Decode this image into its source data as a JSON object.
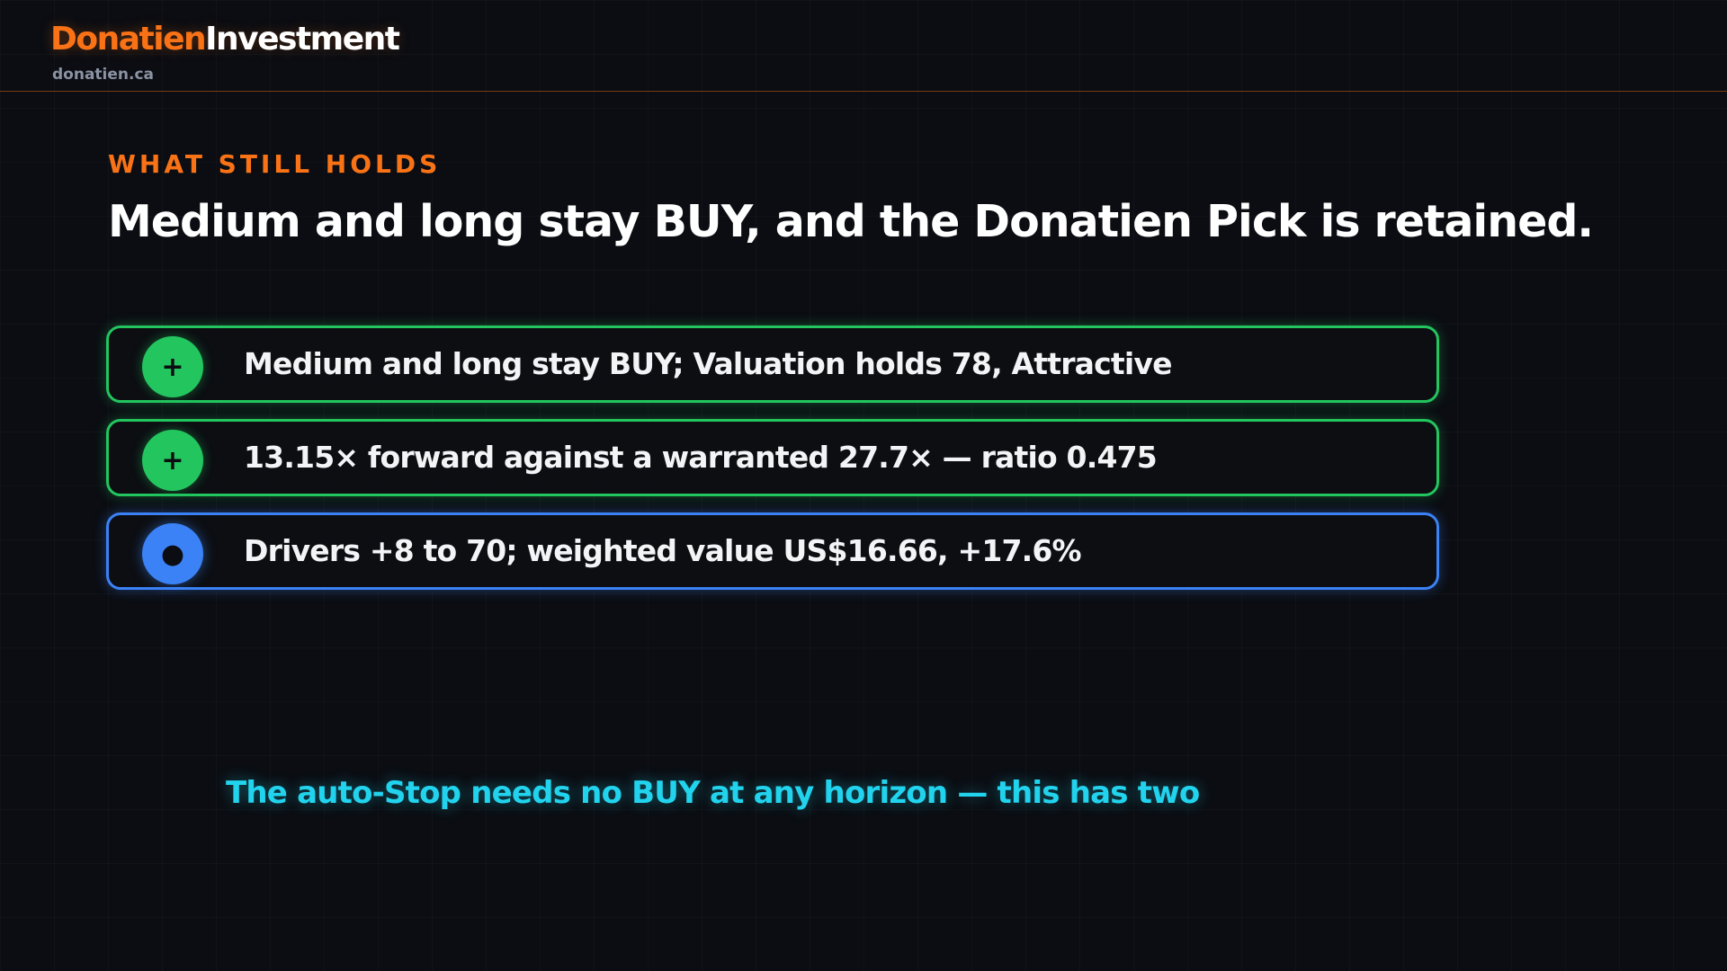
{
  "brand": {
    "name_primary": "Donatien",
    "name_secondary": "Investment",
    "domain": "donatien.ca",
    "colors": {
      "accent": "#f97316",
      "positive": "#22c55e",
      "neutral": "#3b82f6",
      "highlight": "#22d3ee",
      "background": "#0b0d12"
    }
  },
  "section": {
    "eyebrow": "WHAT STILL HOLDS",
    "headline": "Medium and long stay BUY, and the Donatien Pick is retained."
  },
  "points": [
    {
      "icon": "plus-icon",
      "symbol": "+",
      "tone": "positive",
      "text": "Medium and long stay BUY; Valuation holds 78, Attractive"
    },
    {
      "icon": "plus-icon",
      "symbol": "+",
      "tone": "positive",
      "text": "13.15× forward against a warranted 27.7× — ratio 0.475"
    },
    {
      "icon": "dot-icon",
      "symbol": "●",
      "tone": "neutral",
      "text": "Drivers +8 to 70; weighted value US$16.66, +17.6%"
    }
  ],
  "callout": {
    "text": "The auto-Stop needs no BUY at any horizon — this has two"
  }
}
